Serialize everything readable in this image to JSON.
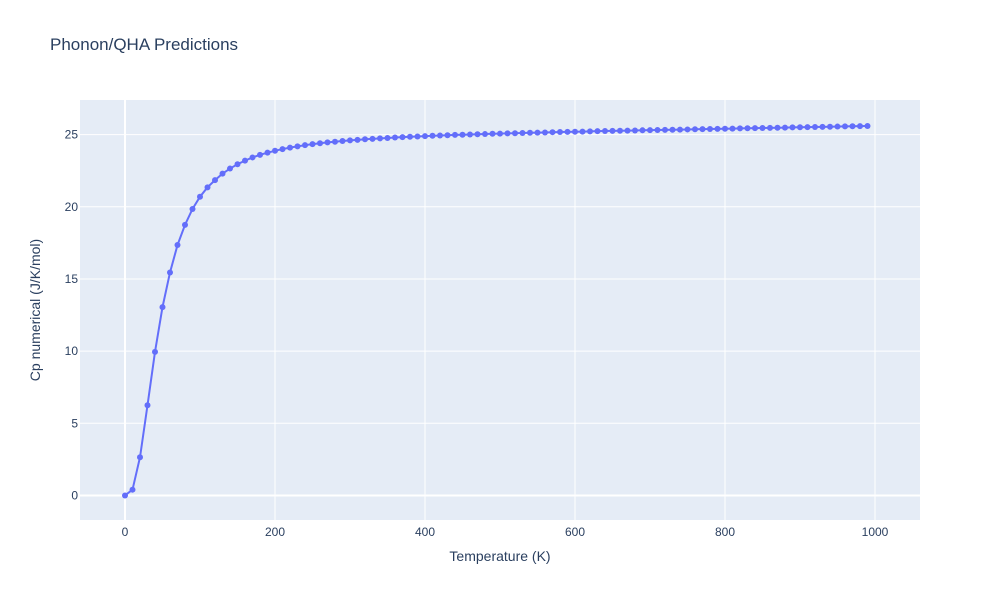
{
  "title": "Phonon/QHA Predictions",
  "colors": {
    "plot_bg": "#e5ecf6",
    "grid": "#ffffff",
    "series": "#636efa",
    "text": "#2a3f5f"
  },
  "chart_data": {
    "type": "line",
    "title": "Phonon/QHA Predictions",
    "xlabel": "Temperature (K)",
    "ylabel": "Cp numerical (J/K/mol)",
    "xlim": [
      -60,
      1060
    ],
    "ylim": [
      -1.7,
      27.4
    ],
    "xticks": [
      0,
      200,
      400,
      600,
      800,
      1000
    ],
    "yticks": [
      0,
      5,
      10,
      15,
      20,
      25
    ],
    "grid": true,
    "markers": true,
    "series": [
      {
        "name": "",
        "x": [
          0,
          10,
          20,
          30,
          40,
          50,
          60,
          70,
          80,
          90,
          100,
          110,
          120,
          130,
          140,
          150,
          160,
          170,
          180,
          190,
          200,
          210,
          220,
          230,
          240,
          250,
          260,
          270,
          280,
          290,
          300,
          310,
          320,
          330,
          340,
          350,
          360,
          370,
          380,
          390,
          400,
          410,
          420,
          430,
          440,
          450,
          460,
          470,
          480,
          490,
          500,
          510,
          520,
          530,
          540,
          550,
          560,
          570,
          580,
          590,
          600,
          610,
          620,
          630,
          640,
          650,
          660,
          670,
          680,
          690,
          700,
          710,
          720,
          730,
          740,
          750,
          760,
          770,
          780,
          790,
          800,
          810,
          820,
          830,
          840,
          850,
          860,
          870,
          880,
          890,
          900,
          910,
          920,
          930,
          940,
          950,
          960,
          970,
          980,
          990
        ],
        "y": [
          0.0,
          0.4,
          2.65,
          6.25,
          9.95,
          13.05,
          15.45,
          17.35,
          18.75,
          19.85,
          20.7,
          21.35,
          21.85,
          22.3,
          22.65,
          22.95,
          23.2,
          23.42,
          23.6,
          23.75,
          23.88,
          24.0,
          24.1,
          24.19,
          24.27,
          24.34,
          24.4,
          24.46,
          24.51,
          24.56,
          24.6,
          24.64,
          24.68,
          24.71,
          24.74,
          24.77,
          24.8,
          24.83,
          24.85,
          24.87,
          24.9,
          24.92,
          24.94,
          24.96,
          24.98,
          24.99,
          25.01,
          25.03,
          25.04,
          25.06,
          25.07,
          25.09,
          25.1,
          25.11,
          25.13,
          25.14,
          25.15,
          25.17,
          25.18,
          25.19,
          25.2,
          25.21,
          25.23,
          25.24,
          25.25,
          25.26,
          25.27,
          25.28,
          25.29,
          25.3,
          25.31,
          25.32,
          25.33,
          25.34,
          25.35,
          25.36,
          25.37,
          25.38,
          25.39,
          25.4,
          25.41,
          25.42,
          25.43,
          25.44,
          25.45,
          25.46,
          25.47,
          25.48,
          25.49,
          25.5,
          25.51,
          25.52,
          25.53,
          25.54,
          25.55,
          25.56,
          25.57,
          25.58,
          25.59,
          25.6
        ]
      }
    ]
  }
}
